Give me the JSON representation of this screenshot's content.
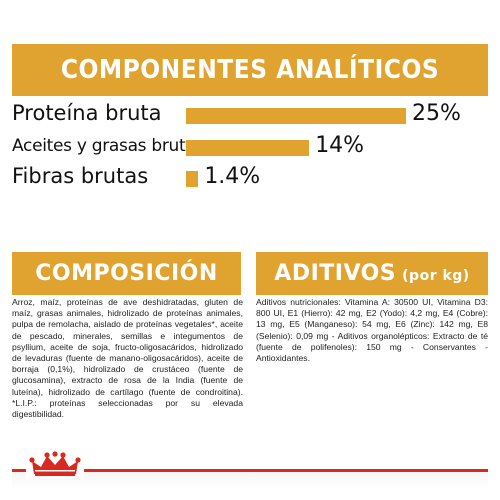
{
  "header": {
    "title": "COMPONENTES ANALÍTICOS"
  },
  "nutrients": [
    {
      "label": "Proteína bruta",
      "value": "25%",
      "percent": 25
    },
    {
      "label": "Aceites y grasas brutos",
      "value": "14%",
      "percent": 14
    },
    {
      "label": "Fibras brutas",
      "value": "1.4%",
      "percent": 1.4
    }
  ],
  "composition": {
    "title": "COMPOSICIÓN",
    "text": "Arroz, maíz, proteínas de ave deshidratadas, gluten de maíz, grasas animales, hidrolizado de proteínas animales, pulpa de remolacha, aislado de proteínas vegetales*, aceite de pescado, minerales, semillas e integumentos de psyllium, aceite de soja, fructo-oligosacáridos, hidrolizado de levaduras (fuente de manano-oligosacáridos), aceite de borraja (0,1%), hidrolizado de crustáceo (fuente de glucosamina), extracto de rosa de la India (fuente de luteína), hidrolizado de cartílago (fuente de condroitina). *L.I.P.: proteínas seleccionadas por su elevada digestibilidad."
  },
  "additives": {
    "title": "ADITIVOS",
    "unit": "(por kg)",
    "text": "Aditivos nutricionales: Vitamina A: 30500 UI, Vitamina D3: 800 UI, E1 (Hierro): 42 mg, E2 (Yodo): 4,2 mg, E4 (Cobre): 13 mg, E5 (Manganeso): 54 mg, E6 (Zinc): 142 mg, E8 (Selenio): 0,09 mg - Aditivos organolépticos: Extracto de té (fuente de polifenoles): 150 mg - Conservantes - Antioxidantes."
  },
  "colors": {
    "accent": "#e1a32f",
    "brand_red": "#d8281f"
  },
  "footer": {
    "logo_icon": "crown-icon"
  }
}
